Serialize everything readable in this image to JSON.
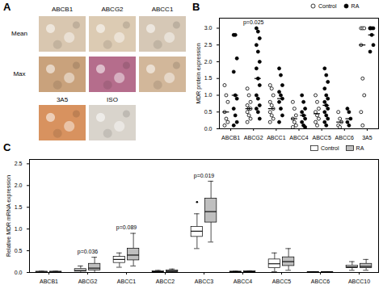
{
  "panel_a": {
    "panel_label": "A",
    "columns": [
      "ABCB1",
      "ABCG2",
      "ABCC1"
    ],
    "rows": [
      {
        "label": "Mean",
        "images": [
          {
            "color": "#d9c7b0"
          },
          {
            "color": "#dccbb3"
          },
          {
            "color": "#d6c8b6"
          }
        ]
      },
      {
        "label": "Max",
        "images": [
          {
            "color": "#c9a27c"
          },
          {
            "color": "#b56d8c"
          },
          {
            "color": "#d2b79a"
          }
        ]
      }
    ],
    "extra": [
      {
        "label": "3A5",
        "color": "#d8925f"
      },
      {
        "label": "ISO",
        "color": "#d9d4cc"
      }
    ]
  },
  "chart_data": [
    {
      "type": "scatter",
      "panel_label": "B",
      "y_label": "MDR protein expression",
      "categories": [
        "ABCB1",
        "ABCG2",
        "ABCC1",
        "ABCC4",
        "ABCC5",
        "ABCC6",
        "3A5"
      ],
      "ylim": [
        0,
        3.3
      ],
      "yticks": [
        {
          "value": 0,
          "label": "0.0"
        },
        {
          "value": 0.5,
          "label": "0.5"
        },
        {
          "value": 1,
          "label": "1.0"
        },
        {
          "value": 1.5,
          "label": "1.5"
        },
        {
          "value": 2,
          "label": "2.0"
        },
        {
          "value": 2.5,
          "label": "2.5"
        },
        {
          "value": 3,
          "label": "3.0"
        }
      ],
      "grid": false,
      "legend": "top-right",
      "annotations": [
        {
          "text": "p=0.025",
          "category": "ABCG2"
        }
      ],
      "series": [
        {
          "name": "Control",
          "color": "#000000",
          "marker": "open",
          "values": [
            [
              1.3,
              1.0,
              0.8,
              0.5,
              0.3,
              0.2,
              0.1
            ],
            [
              1.2,
              1.0,
              0.8,
              0.7,
              0.6,
              0.6,
              0.5,
              0.4,
              0.3,
              0.2
            ],
            [
              1.3,
              1.2,
              1.0,
              0.8,
              0.7,
              0.6,
              0.5,
              0.4,
              0.3,
              0.2
            ],
            [
              0.8,
              0.6,
              0.4,
              0.3,
              0.2,
              0.1,
              0.05
            ],
            [
              1.0,
              0.8,
              0.6,
              0.5,
              0.4,
              0.3,
              0.2,
              0.1
            ],
            [
              0.5,
              0.3,
              0.2,
              0.1,
              0.05
            ],
            [
              3.0,
              3.0,
              3.0,
              2.5,
              1.5,
              1.0,
              0.5,
              0.1
            ]
          ],
          "means": [
            0.5,
            0.6,
            0.6,
            0.3,
            0.45,
            0.2,
            2.5
          ]
        },
        {
          "name": "RA",
          "color": "#000000",
          "marker": "filled",
          "values": [
            [
              2.8,
              2.8,
              2.1,
              1.7,
              1.0,
              0.9,
              0.6,
              0.4,
              0.2,
              0.1
            ],
            [
              3.0,
              2.9,
              2.7,
              2.5,
              2.3,
              2.0,
              1.8,
              1.5,
              1.3,
              1.0,
              0.9,
              0.7,
              0.6,
              0.5,
              0.3
            ],
            [
              1.8,
              1.6,
              1.3,
              1.1,
              1.0,
              0.9,
              0.8,
              0.6,
              0.4,
              0.2
            ],
            [
              1.0,
              0.8,
              0.6,
              0.5,
              0.4,
              0.3,
              0.2,
              0.1,
              0.05
            ],
            [
              1.8,
              1.6,
              1.4,
              1.2,
              1.0,
              0.9,
              0.8,
              0.7,
              0.6,
              0.5,
              0.4,
              0.3,
              0.2,
              0.1
            ],
            [
              0.6,
              0.5,
              0.3,
              0.2,
              0.1
            ],
            [
              3.0,
              3.0,
              3.0,
              3.0,
              2.8,
              2.5,
              2.3
            ]
          ],
          "means": [
            1.0,
            1.5,
            0.9,
            0.4,
            0.7,
            0.3,
            2.8
          ]
        }
      ]
    },
    {
      "type": "box",
      "panel_label": "C",
      "y_label": "Relative MDR mRNA expression",
      "categories": [
        "ABCB1",
        "ABCG2",
        "ABCC1",
        "ABCC2",
        "ABCC3",
        "ABCC4",
        "ABCC5",
        "ABCC6",
        "ABCC10"
      ],
      "ylim": [
        0,
        2.6
      ],
      "yticks": [
        {
          "value": 0,
          "label": "0.0"
        },
        {
          "value": 0.5,
          "label": "0.5"
        },
        {
          "value": 1,
          "label": "1.0"
        },
        {
          "value": 1.5,
          "label": "1.5"
        },
        {
          "value": 2,
          "label": "2.0"
        },
        {
          "value": 2.5,
          "label": "2.5"
        }
      ],
      "grid": false,
      "legend": "top-right",
      "annotations": [
        {
          "text": "p=0.036",
          "category": "ABCG2"
        },
        {
          "text": "p=0.089",
          "category": "ABCC1"
        },
        {
          "text": "p=0.019",
          "category": "ABCC3"
        }
      ],
      "series": [
        {
          "name": "Control",
          "color": "#ffffff",
          "values": [
            [
              0,
              0,
              0.01,
              0.02,
              0.03
            ],
            [
              0,
              0.02,
              0.05,
              0.08,
              0.15
            ],
            [
              0.12,
              0.22,
              0.3,
              0.36,
              0.45
            ],
            [
              0,
              0.01,
              0.02,
              0.03,
              0.05
            ],
            [
              0.55,
              0.82,
              0.95,
              1.05,
              1.35
            ],
            [
              0,
              0.01,
              0.02,
              0.02,
              0.03
            ],
            [
              0.02,
              0.1,
              0.2,
              0.3,
              0.45
            ],
            [
              0,
              0,
              0.01,
              0.01,
              0.02
            ],
            [
              0.05,
              0.1,
              0.13,
              0.16,
              0.25
            ]
          ],
          "outliers": [
            [],
            [],
            [],
            [],
            [
              1.62
            ],
            [],
            [],
            [],
            []
          ]
        },
        {
          "name": "RA",
          "color": "#bfbfbf",
          "values": [
            [
              0,
              0,
              0.01,
              0.02,
              0.03
            ],
            [
              0,
              0.05,
              0.1,
              0.2,
              0.35
            ],
            [
              0.15,
              0.28,
              0.4,
              0.55,
              0.9
            ],
            [
              0,
              0.01,
              0.03,
              0.05,
              0.08
            ],
            [
              0.7,
              1.15,
              1.4,
              1.7,
              2.1
            ],
            [
              0,
              0.01,
              0.02,
              0.03,
              0.04
            ],
            [
              0.05,
              0.15,
              0.25,
              0.35,
              0.55
            ],
            [
              0,
              0,
              0.01,
              0.01,
              0.02
            ],
            [
              0.05,
              0.1,
              0.14,
              0.2,
              0.3
            ]
          ],
          "outliers": [
            [],
            [],
            [],
            [],
            [],
            [],
            [],
            [],
            []
          ]
        }
      ]
    }
  ]
}
